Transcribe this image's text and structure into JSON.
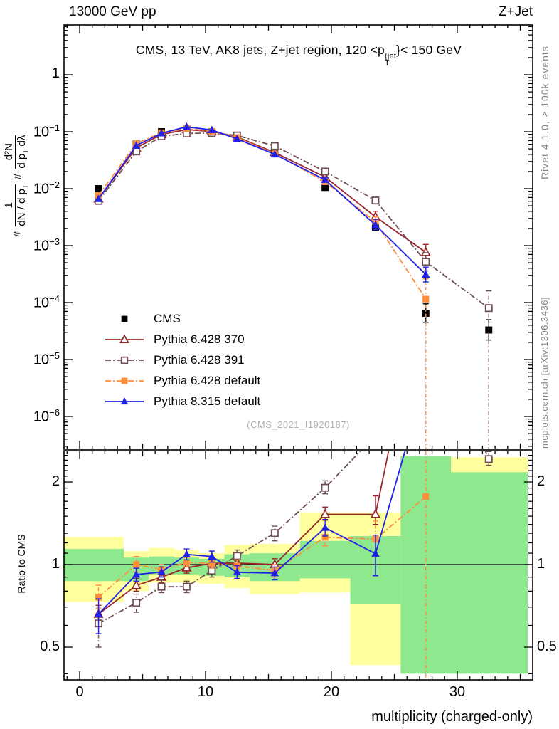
{
  "header": {
    "energy": "13000 GeV pp",
    "process": "Z+Jet"
  },
  "panel_title": {
    "pre": "CMS, 13 TeV, AK8 jets, Z+jet region, 120 <p",
    "sup": "{jet",
    "sub": "T",
    "post": "}< 150 GeV"
  },
  "ylabel": {
    "hash1": "#",
    "f1num": "1",
    "f1den": "dN / d p",
    "f1den_sub": "T",
    "hash2": "#",
    "f2num": "d²N",
    "f2den": "d p",
    "f2den_sub": "T",
    "f2den2": " dλ"
  },
  "right_margin": {
    "top_note": "Rivet 4.1.0, ≥ 100k events",
    "bottom_note": "mcplots.cern.ch [arXiv:1306.3436]"
  },
  "watermark": "(CMS_2021_I1920187)",
  "colors": {
    "band_outer": "#ffff9e",
    "band_inner": "#8ee88e",
    "cms": "#000000",
    "pythia6_370": "#9a262b",
    "pythia6_391": "#6f4d52",
    "pythia6_default": "#ff8d3a",
    "pythia8_default": "#2121e5",
    "watermark_gray": "#b2b2b2",
    "margin_text_gray": "#858585"
  },
  "axes": {
    "x": {
      "min": -1.25,
      "max": 36,
      "major_ticks": [
        0,
        10,
        20,
        30
      ]
    },
    "y_main": {
      "type": "log",
      "label_exponents": [
        0,
        -1,
        -2,
        -3,
        -4,
        -5,
        -6
      ],
      "min": 2.7e-07,
      "max": 7.5
    },
    "y_ratio": {
      "type": "log2",
      "labels": [
        "2",
        "1",
        "0.5"
      ],
      "values": [
        2,
        1,
        0.5
      ],
      "min": 0.38,
      "max": 2.6
    }
  },
  "chart_data": {
    "type": "line",
    "title": "CMS, 13 TeV, AK8 jets, Z+jet region, 120 <p_T^{jet}< 150 GeV",
    "xlabel": "multiplicity (charged-only)",
    "ylabel_main": "# 1/(dN/dp_T) # d²N/(dp_T dλ)",
    "ylabel_ratio": "Ratio to CMS",
    "xlim": [
      -1.25,
      36
    ],
    "ylim_main": [
      2.7e-07,
      7.5
    ],
    "ylim_ratio": [
      0.38,
      2.6
    ],
    "grid": false,
    "legend_position": "inside-main-lower-left",
    "x": [
      1.5,
      4.5,
      6.5,
      8.5,
      10.5,
      12.5,
      15.5,
      19.5,
      23.5,
      27.5,
      32.5
    ],
    "bin_edges": [
      -1.25,
      3.5,
      5.5,
      7.5,
      9.5,
      11.5,
      13.5,
      17.5,
      21.5,
      25.5,
      29.5,
      35.5
    ],
    "series": [
      {
        "name": "CMS",
        "color": "#000000",
        "marker": "square-filled",
        "line": "none",
        "main": [
          0.01,
          0.062,
          0.1,
          0.112,
          0.1,
          0.08,
          0.043,
          0.0105,
          0.0021,
          6.5e-05,
          3.3e-05
        ],
        "main_err": [
          null,
          null,
          null,
          null,
          null,
          null,
          null,
          null,
          null,
          [
            4.5e-05,
            9.5e-05
          ],
          [
            2.2e-05,
            5e-05
          ]
        ],
        "ratio_err": null
      },
      {
        "name": "Pythia 6.428 370",
        "color": "#9a262b",
        "marker": "triangle-open",
        "line": "solid",
        "main": [
          0.0066,
          0.052,
          0.09,
          0.109,
          0.101,
          0.081,
          0.043,
          0.016,
          0.0032,
          0.00076,
          null
        ],
        "main_err": [
          null,
          null,
          null,
          null,
          null,
          null,
          null,
          [
            0.0145,
            0.0175
          ],
          [
            0.0026,
            0.004
          ],
          [
            0.00055,
            0.00105
          ],
          null
        ],
        "ratio_err": [
          [
            0.6,
            0.71
          ],
          [
            0.8,
            0.89
          ],
          [
            0.86,
            0.94
          ],
          [
            0.93,
            1.01
          ],
          [
            0.97,
            1.05
          ],
          [
            0.97,
            1.06
          ],
          [
            0.95,
            1.05
          ],
          [
            1.45,
            1.62
          ],
          [
            1.4,
            1.78
          ],
          null,
          null
        ]
      },
      {
        "name": "Pythia 6.428 391",
        "color": "#6f4d52",
        "marker": "square-open",
        "line": "dashdot",
        "main": [
          0.0061,
          0.045,
          0.083,
          0.093,
          0.095,
          0.086,
          0.056,
          0.02,
          0.0062,
          0.00052,
          8e-05
        ],
        "main_err": [
          null,
          null,
          null,
          null,
          null,
          null,
          null,
          [
            0.018,
            0.022
          ],
          [
            0.0054,
            0.0071
          ],
          [
            0.00036,
            0.00075
          ],
          [
            2.5e-07,
            0.00016
          ]
        ],
        "ratio_err": [
          [
            0.5,
            0.7
          ],
          [
            0.67,
            0.78
          ],
          [
            0.79,
            0.88
          ],
          [
            0.79,
            0.87
          ],
          [
            0.9,
            1.0
          ],
          [
            1.03,
            1.13
          ],
          [
            1.22,
            1.38
          ],
          [
            1.81,
            2.02
          ],
          null,
          null,
          [
            2.3,
            2.58
          ]
        ]
      },
      {
        "name": "Pythia 6.428 default",
        "color": "#ff8d3a",
        "marker": "square-filled",
        "line": "dashdot",
        "main": [
          0.0076,
          0.062,
          0.096,
          0.114,
          0.101,
          0.079,
          0.041,
          0.0132,
          0.0026,
          0.000115,
          null
        ],
        "main_err": [
          null,
          null,
          null,
          null,
          null,
          null,
          null,
          [
            0.012,
            0.0145
          ],
          [
            0.0021,
            0.0032
          ],
          [
            2.5e-07,
            0.00026
          ],
          null
        ],
        "ratio_err": [
          [
            0.69,
            0.84
          ],
          [
            0.94,
            1.07
          ],
          [
            0.92,
            1.0
          ],
          [
            0.98,
            1.06
          ],
          [
            0.97,
            1.05
          ],
          [
            0.94,
            1.04
          ],
          [
            0.9,
            1.0
          ],
          [
            1.17,
            1.36
          ],
          [
            1.08,
            1.44
          ],
          [
            0.36,
            2.7
          ],
          null
        ]
      },
      {
        "name": "Pythia 8.315 default",
        "color": "#2121e5",
        "marker": "triangle-filled",
        "line": "solid",
        "main": [
          0.0066,
          0.057,
          0.094,
          0.122,
          0.107,
          0.075,
          0.04,
          0.0143,
          0.0023,
          0.00031,
          null
        ],
        "main_err": [
          null,
          null,
          null,
          null,
          null,
          null,
          null,
          [
            0.0135,
            0.0155
          ],
          [
            0.0019,
            0.0029
          ],
          [
            0.00023,
            0.00042
          ],
          null
        ],
        "ratio_err": [
          [
            0.56,
            0.75
          ],
          [
            0.87,
            0.97
          ],
          [
            0.9,
            0.98
          ],
          [
            1.04,
            1.14
          ],
          [
            1.02,
            1.12
          ],
          [
            0.89,
            0.99
          ],
          [
            0.88,
            0.98
          ],
          [
            1.27,
            1.46
          ],
          [
            0.91,
            1.28
          ],
          null,
          null
        ]
      }
    ],
    "bands": [
      {
        "x0": -1.25,
        "x1": 3.5,
        "yellow": [
          0.73,
          1.26
        ],
        "green": [
          0.87,
          1.14
        ]
      },
      {
        "x0": 3.5,
        "x1": 5.5,
        "yellow": [
          0.8,
          1.12
        ],
        "green": [
          0.87,
          1.06
        ]
      },
      {
        "x0": 5.5,
        "x1": 7.5,
        "yellow": [
          0.86,
          1.15
        ],
        "green": [
          0.92,
          1.07
        ]
      },
      {
        "x0": 7.5,
        "x1": 9.5,
        "yellow": [
          0.86,
          1.13
        ],
        "green": [
          0.92,
          1.06
        ]
      },
      {
        "x0": 9.5,
        "x1": 11.5,
        "yellow": [
          0.85,
          1.1
        ],
        "green": [
          0.91,
          1.05
        ]
      },
      {
        "x0": 11.5,
        "x1": 13.5,
        "yellow": [
          0.82,
          1.18
        ],
        "green": [
          0.9,
          1.09
        ]
      },
      {
        "x0": 13.5,
        "x1": 17.5,
        "yellow": [
          0.78,
          1.19
        ],
        "green": [
          0.87,
          1.1
        ]
      },
      {
        "x0": 17.5,
        "x1": 21.5,
        "yellow": [
          0.79,
          1.55
        ],
        "green": [
          0.89,
          1.22
        ]
      },
      {
        "x0": 21.5,
        "x1": 25.5,
        "yellow": [
          0.43,
          1.55
        ],
        "green": [
          0.72,
          1.27
        ]
      },
      {
        "x0": 25.5,
        "x1": 29.5,
        "yellow": null,
        "green": [
          0.4,
          2.49
        ]
      },
      {
        "x0": 29.5,
        "x1": 35.6,
        "yellow": [
          2.17,
          2.46
        ],
        "green": [
          0.4,
          2.17
        ]
      }
    ],
    "ratio_reference": 1
  }
}
